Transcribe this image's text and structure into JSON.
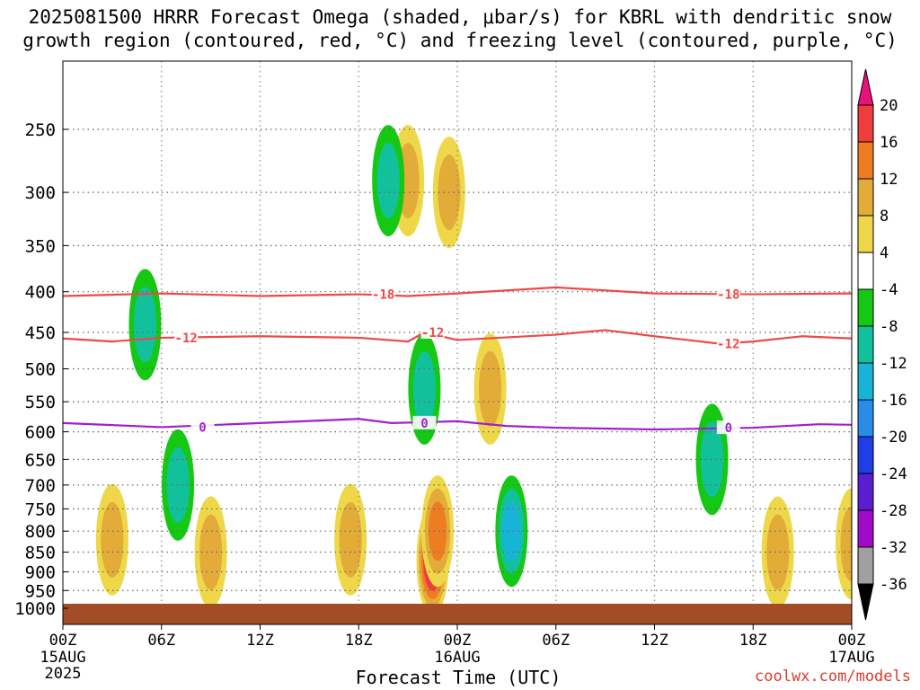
{
  "title": {
    "line1": "2025081500 HRRR Forecast Omega (shaded, μbar/s) for KBRL with dendritic snow",
    "line2": "growth region (contoured, red, °C) and freezing level (contoured, purple, °C)"
  },
  "credit": "coolwx.com/models",
  "chart_data": {
    "type": "heatmap",
    "title": "2025081500 HRRR Forecast Omega (shaded, μbar/s) for KBRL with dendritic snow growth region (contoured, red, °C) and freezing level (contoured, purple, °C)",
    "xlabel": "Forecast Time (UTC)",
    "ylabel": "",
    "x_range_hours": [
      0,
      48
    ],
    "y_axis_scale": "log-pressure",
    "x_ticks": [
      {
        "hour": 0,
        "label": "00Z",
        "date": "15AUG",
        "year": "2025"
      },
      {
        "hour": 6,
        "label": "06Z"
      },
      {
        "hour": 12,
        "label": "12Z"
      },
      {
        "hour": 18,
        "label": "18Z"
      },
      {
        "hour": 24,
        "label": "00Z",
        "date": "16AUG"
      },
      {
        "hour": 30,
        "label": "06Z"
      },
      {
        "hour": 36,
        "label": "12Z"
      },
      {
        "hour": 42,
        "label": "18Z"
      },
      {
        "hour": 48,
        "label": "00Z",
        "date": "17AUG"
      }
    ],
    "y_ticks": [
      250,
      300,
      350,
      400,
      450,
      500,
      550,
      600,
      650,
      700,
      750,
      800,
      850,
      900,
      950,
      1000
    ],
    "grid": true,
    "colorbar": {
      "labels": [
        "20",
        "16",
        "12",
        "8",
        "4",
        "-4",
        "-8",
        "-12",
        "-16",
        "-20",
        "-24",
        "-28",
        "-32",
        "-36"
      ],
      "colors": [
        "#e8127a",
        "#f03c3c",
        "#ee7d22",
        "#e3ac38",
        "#eed84a",
        "#ffffff",
        "#14c814",
        "#12c19b",
        "#18b4d8",
        "#2a8ce8",
        "#1f3ee8",
        "#5a1ed0",
        "#a00ac8",
        "#a0a0a0",
        "#000000"
      ]
    },
    "contours": [
      {
        "name": "-18",
        "color": "#f04848",
        "points": [
          [
            0,
            405
          ],
          [
            6,
            402
          ],
          [
            12,
            405
          ],
          [
            18,
            403
          ],
          [
            21,
            405
          ],
          [
            24,
            402
          ],
          [
            30,
            395
          ],
          [
            36,
            402
          ],
          [
            42,
            403
          ],
          [
            48,
            402
          ]
        ]
      },
      {
        "name": "-12",
        "color": "#f04848",
        "points": [
          [
            0,
            458
          ],
          [
            3,
            462
          ],
          [
            6,
            457
          ],
          [
            12,
            455
          ],
          [
            18,
            457
          ],
          [
            21,
            462
          ],
          [
            22,
            450
          ],
          [
            24,
            460
          ],
          [
            30,
            453
          ],
          [
            33,
            447
          ],
          [
            36,
            455
          ],
          [
            40,
            465
          ],
          [
            42,
            462
          ],
          [
            45,
            455
          ],
          [
            48,
            458
          ]
        ]
      },
      {
        "name": "0",
        "color": "#a020d0",
        "points": [
          [
            0,
            585
          ],
          [
            6,
            592
          ],
          [
            12,
            585
          ],
          [
            18,
            578
          ],
          [
            20,
            585
          ],
          [
            24,
            582
          ],
          [
            27,
            590
          ],
          [
            30,
            593
          ],
          [
            36,
            596
          ],
          [
            42,
            593
          ],
          [
            46,
            587
          ],
          [
            48,
            588
          ]
        ]
      }
    ],
    "omega_features": [
      {
        "hour": 3,
        "level": 820,
        "value": 8
      },
      {
        "hour": 9,
        "level": 850,
        "value": 8
      },
      {
        "hour": 17.5,
        "level": 820,
        "value": 8
      },
      {
        "hour": 22.5,
        "level": 870,
        "value": 20
      },
      {
        "hour": 22.8,
        "level": 800,
        "value": 14
      },
      {
        "hour": 21,
        "level": 290,
        "value": 8
      },
      {
        "hour": 23.5,
        "level": 300,
        "value": 8
      },
      {
        "hour": 26,
        "level": 530,
        "value": 8
      },
      {
        "hour": 43.5,
        "level": 850,
        "value": 10
      },
      {
        "hour": 48,
        "level": 830,
        "value": 8
      },
      {
        "hour": 19.8,
        "level": 290,
        "value": -8
      },
      {
        "hour": 22,
        "level": 530,
        "value": -8
      },
      {
        "hour": 27.3,
        "level": 800,
        "value": -12
      },
      {
        "hour": 39.5,
        "level": 650,
        "value": -8
      },
      {
        "hour": 7,
        "level": 700,
        "value": -8
      },
      {
        "hour": 5,
        "level": 440,
        "value": -8
      }
    ]
  }
}
